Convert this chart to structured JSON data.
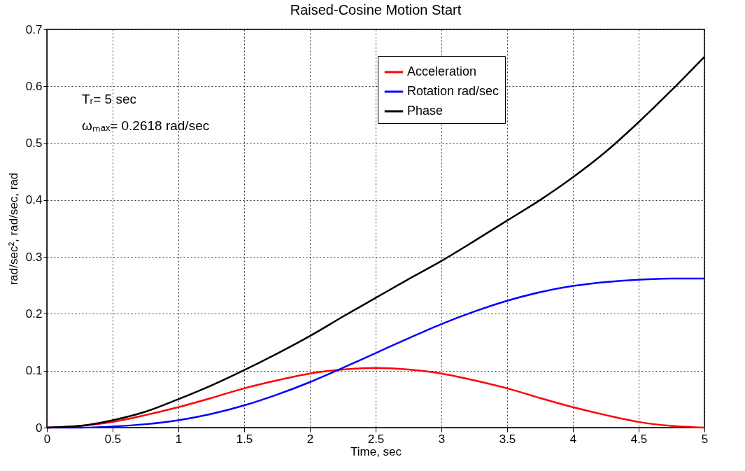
{
  "chart_data": {
    "type": "line",
    "title": "Raised-Cosine Motion Start",
    "xlabel": "Time, sec",
    "ylabel": "rad/sec², rad/sec, rad",
    "x": [
      0,
      0.25,
      0.5,
      0.75,
      1,
      1.25,
      1.5,
      1.75,
      2,
      2.25,
      2.5,
      2.75,
      3,
      3.25,
      3.5,
      3.75,
      4,
      4.25,
      4.5,
      4.75,
      5
    ],
    "series": [
      {
        "name": "Acceleration",
        "color": "#ff0000",
        "values": [
          0,
          0.003,
          0.01,
          0.022,
          0.036,
          0.052,
          0.069,
          0.083,
          0.095,
          0.102,
          0.105,
          0.102,
          0.095,
          0.083,
          0.069,
          0.052,
          0.036,
          0.022,
          0.01,
          0.003,
          0
        ]
      },
      {
        "name": "Rotation rad/sec",
        "color": "#0000ff",
        "values": [
          0,
          0.0,
          0.002,
          0.006,
          0.013,
          0.024,
          0.039,
          0.058,
          0.08,
          0.105,
          0.131,
          0.157,
          0.182,
          0.204,
          0.223,
          0.238,
          0.249,
          0.256,
          0.26,
          0.262,
          0.262
        ]
      },
      {
        "name": "Phase",
        "color": "#000000",
        "values": [
          0,
          0.003,
          0.013,
          0.028,
          0.05,
          0.074,
          0.101,
          0.13,
          0.161,
          0.195,
          0.228,
          0.261,
          0.293,
          0.328,
          0.364,
          0.4,
          0.44,
          0.485,
          0.537,
          0.593,
          0.652
        ]
      }
    ],
    "annotations": [
      "Tᵣ= 5 sec",
      "ωₘₐₓ= 0.2618 rad/sec"
    ],
    "xlim": [
      0,
      5
    ],
    "xticks": [
      0,
      0.5,
      1,
      1.5,
      2,
      2.5,
      3,
      3.5,
      4,
      4.5,
      5
    ],
    "ylim": [
      0,
      0.7
    ],
    "yticks": [
      0,
      0.1,
      0.2,
      0.3,
      0.4,
      0.5,
      0.6,
      0.7
    ],
    "grid": true,
    "legend": "top right",
    "line_style": "solid",
    "marker": "none"
  }
}
